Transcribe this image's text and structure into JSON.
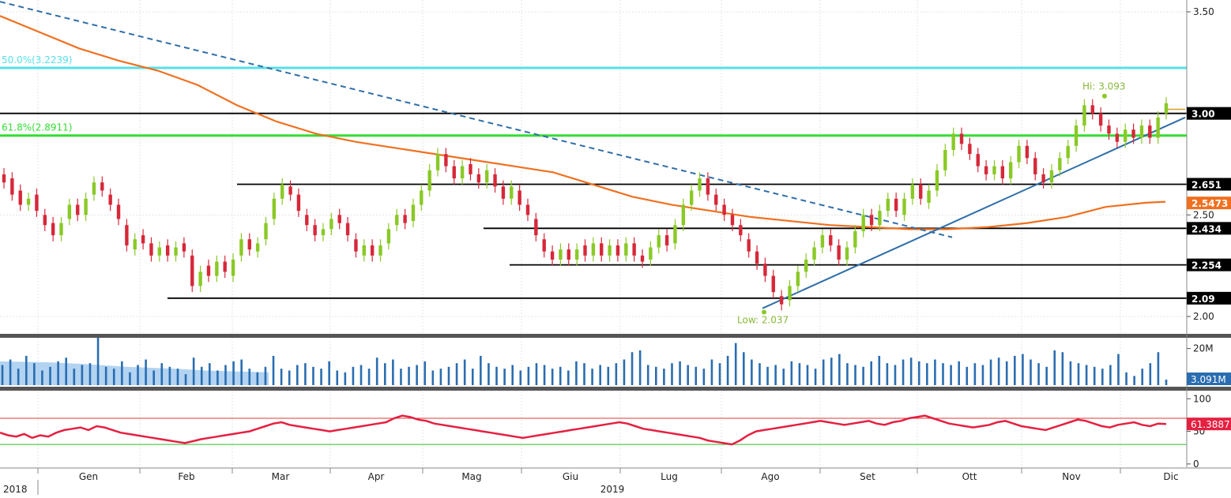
{
  "colors": {
    "candle_up": "#8ac926",
    "candle_down": "#d62839",
    "ma": "#f07020",
    "trend": "#2f6ea8",
    "fib_green": "#33dd33",
    "fib_cyan": "#55e0e8",
    "volume": "#2a6db0",
    "volume_ma": "#9fc8ee",
    "rsi_line": "#e52040",
    "rsi_upper": "#e03a3a",
    "rsi_lower": "#33bb33",
    "level_box": "#000000",
    "ma_box": "#f07020",
    "rsi_box": "#e52040",
    "volume_box": "#2a6db0"
  },
  "chart_data": [
    {
      "type": "candlestick",
      "ylim": [
        1.9,
        3.6
      ],
      "yticks": [
        "3.50",
        "3.00",
        "2.50",
        "2.00"
      ],
      "fib_levels": [
        {
          "label": "50.0%(3.2239)",
          "value": 3.2239
        },
        {
          "label": "61.8%(2.8911)",
          "value": 2.8911
        }
      ],
      "top_line_value": 3.57,
      "support_resistance": [
        {
          "label": "3.00",
          "value": 3.0
        },
        {
          "label": "2.651",
          "value": 2.651
        },
        {
          "label": "2.434",
          "value": 2.434
        },
        {
          "label": "2.254",
          "value": 2.254
        },
        {
          "label": "2.09",
          "value": 2.09
        }
      ],
      "ma_label": "2.5473",
      "ma_value": 2.5473,
      "high_annotation": {
        "label": "Hi: 3.093",
        "value": 3.093
      },
      "low_annotation": {
        "label": "Low: 2.037",
        "value": 2.037
      },
      "ma_path": [
        [
          0,
          3.48
        ],
        [
          50,
          3.4
        ],
        [
          100,
          3.32
        ],
        [
          150,
          3.26
        ],
        [
          200,
          3.21
        ],
        [
          250,
          3.14
        ],
        [
          300,
          3.04
        ],
        [
          350,
          2.96
        ],
        [
          400,
          2.9
        ],
        [
          450,
          2.86
        ],
        [
          500,
          2.83
        ],
        [
          550,
          2.8
        ],
        [
          600,
          2.77
        ],
        [
          650,
          2.74
        ],
        [
          700,
          2.71
        ],
        [
          750,
          2.65
        ],
        [
          800,
          2.59
        ],
        [
          850,
          2.55
        ],
        [
          900,
          2.52
        ],
        [
          950,
          2.49
        ],
        [
          1000,
          2.47
        ],
        [
          1050,
          2.45
        ],
        [
          1100,
          2.44
        ],
        [
          1150,
          2.43
        ],
        [
          1200,
          2.43
        ],
        [
          1250,
          2.44
        ],
        [
          1300,
          2.46
        ],
        [
          1350,
          2.49
        ],
        [
          1400,
          2.54
        ],
        [
          1450,
          2.56
        ],
        [
          1475,
          2.565
        ]
      ],
      "trend_down": [
        [
          0,
          3.55
        ],
        [
          1205,
          2.39
        ]
      ],
      "trend_up": [
        [
          965,
          2.04
        ],
        [
          1500,
          2.98
        ]
      ],
      "candles": [
        [
          2.7,
          2.66
        ],
        [
          2.68,
          2.6
        ],
        [
          2.62,
          2.55
        ],
        [
          2.55,
          2.58
        ],
        [
          2.6,
          2.52
        ],
        [
          2.5,
          2.45
        ],
        [
          2.46,
          2.4
        ],
        [
          2.4,
          2.46
        ],
        [
          2.48,
          2.55
        ],
        [
          2.55,
          2.5
        ],
        [
          2.5,
          2.58
        ],
        [
          2.6,
          2.66
        ],
        [
          2.66,
          2.62
        ],
        [
          2.6,
          2.55
        ],
        [
          2.55,
          2.48
        ],
        [
          2.45,
          2.35
        ],
        [
          2.33,
          2.38
        ],
        [
          2.4,
          2.36
        ],
        [
          2.36,
          2.3
        ],
        [
          2.3,
          2.34
        ],
        [
          2.35,
          2.3
        ],
        [
          2.3,
          2.34
        ],
        [
          2.36,
          2.32
        ],
        [
          2.3,
          2.15
        ],
        [
          2.15,
          2.22
        ],
        [
          2.25,
          2.2
        ],
        [
          2.2,
          2.27
        ],
        [
          2.27,
          2.22
        ],
        [
          2.2,
          2.28
        ],
        [
          2.3,
          2.38
        ],
        [
          2.38,
          2.33
        ],
        [
          2.32,
          2.36
        ],
        [
          2.38,
          2.46
        ],
        [
          2.48,
          2.58
        ],
        [
          2.58,
          2.65
        ],
        [
          2.64,
          2.6
        ],
        [
          2.6,
          2.52
        ],
        [
          2.5,
          2.45
        ],
        [
          2.45,
          2.4
        ],
        [
          2.4,
          2.43
        ],
        [
          2.43,
          2.48
        ],
        [
          2.5,
          2.46
        ],
        [
          2.46,
          2.4
        ],
        [
          2.38,
          2.32
        ],
        [
          2.3,
          2.35
        ],
        [
          2.35,
          2.3
        ],
        [
          2.3,
          2.35
        ],
        [
          2.36,
          2.43
        ],
        [
          2.45,
          2.5
        ],
        [
          2.5,
          2.46
        ],
        [
          2.47,
          2.55
        ],
        [
          2.55,
          2.62
        ],
        [
          2.62,
          2.72
        ],
        [
          2.72,
          2.8
        ],
        [
          2.8,
          2.74
        ],
        [
          2.74,
          2.68
        ],
        [
          2.68,
          2.74
        ],
        [
          2.75,
          2.7
        ],
        [
          2.7,
          2.66
        ],
        [
          2.66,
          2.72
        ],
        [
          2.7,
          2.64
        ],
        [
          2.64,
          2.58
        ],
        [
          2.58,
          2.64
        ],
        [
          2.62,
          2.55
        ],
        [
          2.55,
          2.5
        ],
        [
          2.48,
          2.4
        ],
        [
          2.38,
          2.32
        ],
        [
          2.32,
          2.28
        ],
        [
          2.28,
          2.33
        ],
        [
          2.33,
          2.28
        ],
        [
          2.28,
          2.33
        ],
        [
          2.35,
          2.3
        ],
        [
          2.3,
          2.36
        ],
        [
          2.36,
          2.3
        ],
        [
          2.3,
          2.35
        ],
        [
          2.35,
          2.3
        ],
        [
          2.3,
          2.36
        ],
        [
          2.36,
          2.3
        ],
        [
          2.3,
          2.27
        ],
        [
          2.28,
          2.34
        ],
        [
          2.34,
          2.4
        ],
        [
          2.4,
          2.35
        ],
        [
          2.36,
          2.45
        ],
        [
          2.45,
          2.55
        ],
        [
          2.55,
          2.62
        ],
        [
          2.62,
          2.68
        ],
        [
          2.68,
          2.6
        ],
        [
          2.6,
          2.55
        ],
        [
          2.55,
          2.5
        ],
        [
          2.5,
          2.45
        ],
        [
          2.45,
          2.4
        ],
        [
          2.38,
          2.32
        ],
        [
          2.32,
          2.26
        ],
        [
          2.26,
          2.2
        ],
        [
          2.2,
          2.12
        ],
        [
          2.1,
          2.06
        ],
        [
          2.08,
          2.15
        ],
        [
          2.15,
          2.22
        ],
        [
          2.22,
          2.28
        ],
        [
          2.28,
          2.34
        ],
        [
          2.34,
          2.4
        ],
        [
          2.4,
          2.35
        ],
        [
          2.35,
          2.28
        ],
        [
          2.28,
          2.34
        ],
        [
          2.34,
          2.42
        ],
        [
          2.42,
          2.5
        ],
        [
          2.5,
          2.45
        ],
        [
          2.45,
          2.52
        ],
        [
          2.52,
          2.58
        ],
        [
          2.58,
          2.52
        ],
        [
          2.5,
          2.58
        ],
        [
          2.58,
          2.65
        ],
        [
          2.65,
          2.58
        ],
        [
          2.56,
          2.62
        ],
        [
          2.62,
          2.72
        ],
        [
          2.72,
          2.82
        ],
        [
          2.82,
          2.9
        ],
        [
          2.9,
          2.85
        ],
        [
          2.85,
          2.8
        ],
        [
          2.8,
          2.74
        ],
        [
          2.74,
          2.7
        ],
        [
          2.7,
          2.74
        ],
        [
          2.74,
          2.68
        ],
        [
          2.68,
          2.76
        ],
        [
          2.76,
          2.84
        ],
        [
          2.84,
          2.78
        ],
        [
          2.78,
          2.7
        ],
        [
          2.7,
          2.66
        ],
        [
          2.66,
          2.72
        ],
        [
          2.72,
          2.78
        ],
        [
          2.78,
          2.84
        ],
        [
          2.84,
          2.94
        ],
        [
          2.94,
          3.04
        ],
        [
          3.04,
          3.0
        ],
        [
          3.0,
          2.94
        ],
        [
          2.94,
          2.9
        ],
        [
          2.9,
          2.86
        ],
        [
          2.86,
          2.92
        ],
        [
          2.92,
          2.88
        ],
        [
          2.88,
          2.94
        ],
        [
          2.94,
          2.88
        ],
        [
          2.88,
          2.98
        ],
        [
          3.0,
          3.05
        ]
      ]
    },
    {
      "type": "bar",
      "label": "Volume",
      "yticks": [
        "20M"
      ],
      "last_label": "3.091M",
      "ylim": [
        0,
        25
      ],
      "values": [
        11,
        14,
        9,
        16,
        12,
        8,
        10,
        13,
        15,
        9,
        11,
        12,
        26,
        10,
        9,
        13,
        7,
        11,
        14,
        8,
        12,
        10,
        9,
        6,
        15,
        10,
        12,
        8,
        11,
        13,
        14,
        9,
        7,
        10,
        16,
        9,
        8,
        11,
        12,
        10,
        9,
        13,
        8,
        7,
        10,
        11,
        9,
        15,
        12,
        14,
        9,
        10,
        11,
        13,
        8,
        9,
        10,
        12,
        14,
        9,
        16,
        12,
        10,
        9,
        11,
        8,
        10,
        12,
        11,
        9,
        10,
        8,
        13,
        12,
        9,
        11,
        10,
        12,
        14,
        18,
        19,
        11,
        10,
        9,
        12,
        13,
        11,
        10,
        9,
        14,
        12,
        16,
        23,
        18,
        14,
        12,
        10,
        11,
        9,
        13,
        12,
        11,
        9,
        14,
        15,
        17,
        12,
        11,
        10,
        13,
        16,
        12,
        11,
        14,
        15,
        13,
        12,
        14,
        12,
        11,
        13,
        10,
        12,
        11,
        14,
        15,
        13,
        16,
        17,
        14,
        12,
        10,
        19,
        18,
        13,
        12,
        11,
        10,
        9,
        11,
        17,
        7,
        5,
        9,
        12,
        18,
        3
      ]
    },
    {
      "type": "line",
      "label": "RSI",
      "yticks": [
        "100",
        "50",
        "0"
      ],
      "ylim": [
        -5,
        110
      ],
      "upper_line_value": 70,
      "lower_line_value": 30,
      "last_label": "61.3887",
      "values": [
        48,
        44,
        42,
        46,
        40,
        44,
        42,
        48,
        52,
        54,
        56,
        52,
        58,
        56,
        52,
        48,
        46,
        44,
        42,
        40,
        38,
        36,
        34,
        32,
        35,
        38,
        40,
        42,
        44,
        46,
        48,
        50,
        54,
        58,
        62,
        64,
        60,
        58,
        56,
        54,
        52,
        50,
        52,
        54,
        56,
        58,
        60,
        62,
        64,
        70,
        74,
        72,
        68,
        66,
        62,
        60,
        58,
        56,
        54,
        52,
        50,
        48,
        46,
        44,
        42,
        40,
        42,
        44,
        46,
        48,
        50,
        52,
        54,
        56,
        58,
        60,
        62,
        64,
        62,
        58,
        54,
        52,
        50,
        48,
        46,
        44,
        42,
        40,
        36,
        34,
        32,
        30,
        36,
        44,
        50,
        52,
        54,
        56,
        58,
        60,
        62,
        64,
        66,
        64,
        62,
        60,
        62,
        64,
        66,
        62,
        60,
        64,
        66,
        70,
        72,
        74,
        70,
        66,
        62,
        60,
        58,
        56,
        58,
        60,
        64,
        66,
        62,
        58,
        56,
        54,
        52,
        56,
        60,
        64,
        68,
        66,
        62,
        58,
        56,
        60,
        62,
        64,
        60,
        58,
        62,
        61.39
      ]
    },
    {
      "type": "axis",
      "months": [
        "Gen",
        "Feb",
        "Mar",
        "Apr",
        "Mag",
        "Giu",
        "Lug",
        "Ago",
        "Set",
        "Ott",
        "Nov",
        "Dic"
      ],
      "years": [
        "2018",
        "2019"
      ]
    }
  ]
}
